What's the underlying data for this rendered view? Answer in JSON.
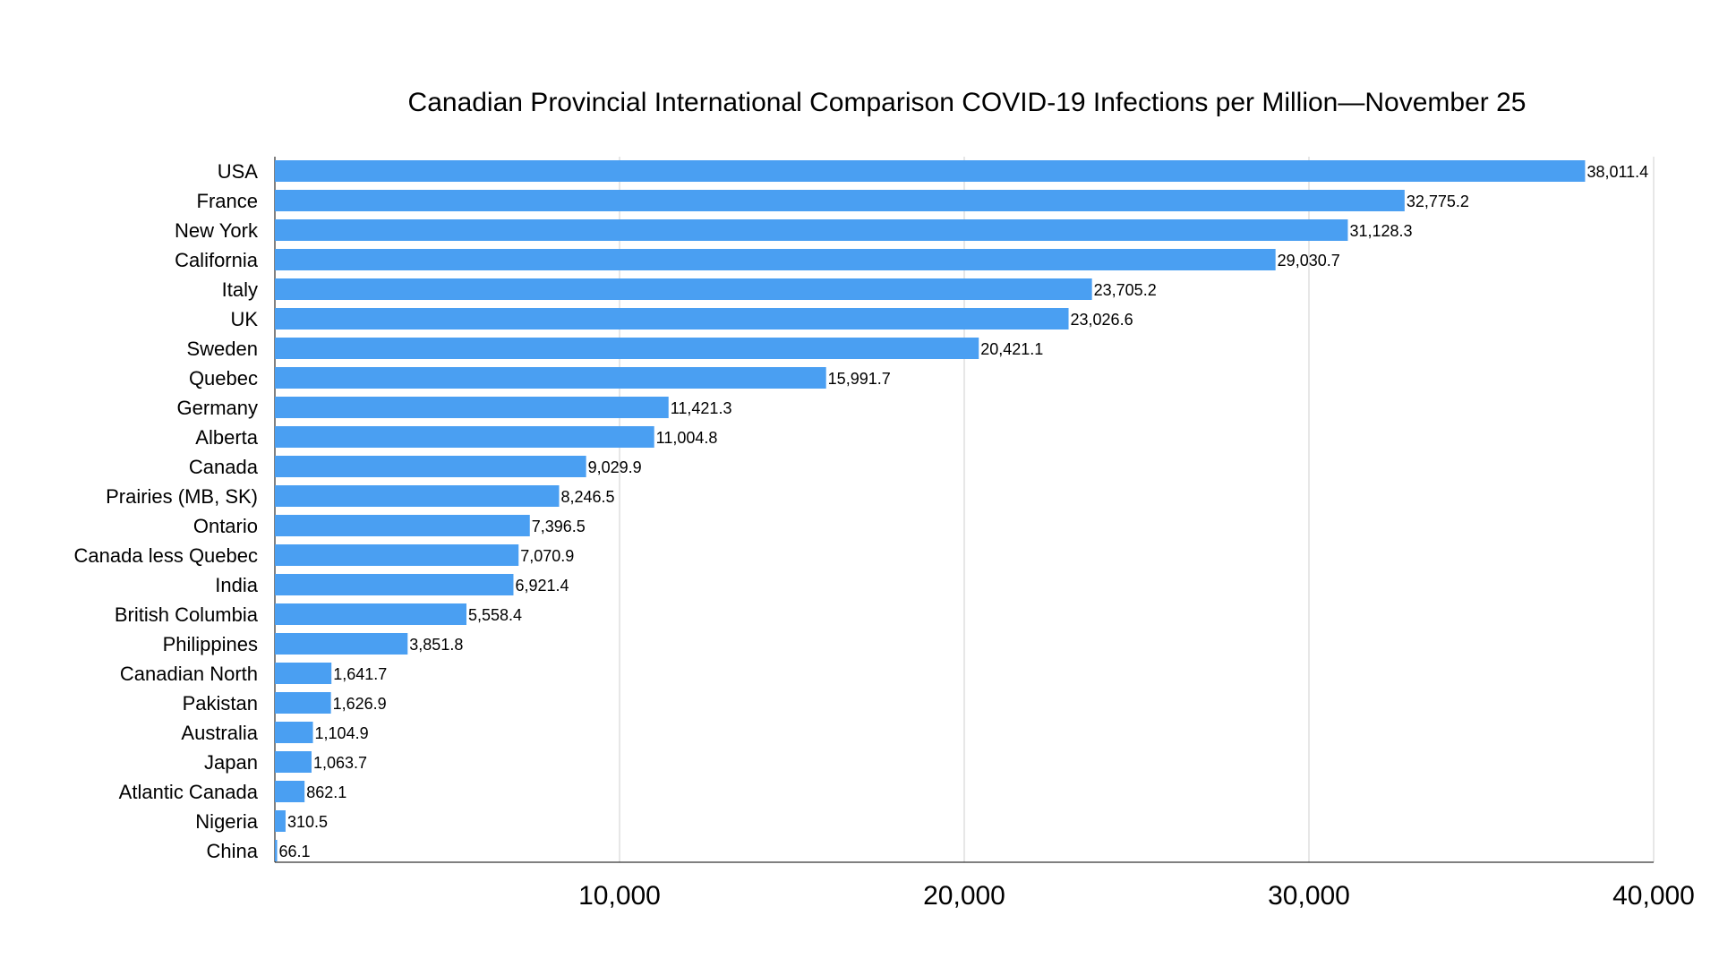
{
  "chart_data": {
    "type": "bar",
    "orientation": "horizontal",
    "title": "Canadian Provincial International Comparison COVID-19 Infections per Million—November 25",
    "xlabel": "",
    "ylabel": "",
    "xlim": [
      0,
      40000
    ],
    "xticks": [
      10000,
      20000,
      30000,
      40000
    ],
    "xtick_labels": [
      "10,000",
      "20,000",
      "30,000",
      "40,000"
    ],
    "grid": "vertical",
    "bar_color": "#4a9ff2",
    "categories": [
      "USA",
      "France",
      "New York",
      "California",
      "Italy",
      "UK",
      "Sweden",
      "Quebec",
      "Germany",
      "Alberta",
      "Canada",
      "Prairies (MB, SK)",
      "Ontario",
      "Canada less Quebec",
      "India",
      "British Columbia",
      "Philippines",
      "Canadian North",
      "Pakistan",
      "Australia",
      "Japan",
      "Atlantic Canada",
      "Nigeria",
      "China"
    ],
    "values": [
      38011.4,
      32775.2,
      31128.3,
      29030.7,
      23705.2,
      23026.6,
      20421.1,
      15991.7,
      11421.3,
      11004.8,
      9029.9,
      8246.5,
      7396.5,
      7070.9,
      6921.4,
      5558.4,
      3851.8,
      1641.7,
      1626.9,
      1104.9,
      1063.7,
      862.1,
      310.5,
      66.1
    ],
    "value_labels": [
      "38,011.4",
      "32,775.2",
      "31,128.3",
      "29,030.7",
      "23,705.2",
      "23,026.6",
      "20,421.1",
      "15,991.7",
      "11,421.3",
      "11,004.8",
      "9,029.9",
      "8,246.5",
      "7,396.5",
      "7,070.9",
      "6,921.4",
      "5,558.4",
      "3,851.8",
      "1,641.7",
      "1,626.9",
      "1,104.9",
      "1,063.7",
      "862.1",
      "310.5",
      "66.1"
    ]
  }
}
